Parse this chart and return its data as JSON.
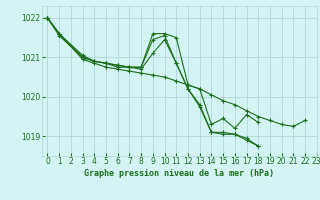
{
  "title": "Graphe pression niveau de la mer (hPa)",
  "background_color": "#d4f4f4",
  "grid_color": "#b0d8d8",
  "line_color": "#1a6e1a",
  "marker_color": "#1a6e1a",
  "xlim": [
    -0.5,
    23
  ],
  "ylim": [
    1018.5,
    1022.3
  ],
  "yticks": [
    1019,
    1020,
    1021,
    1022
  ],
  "xticks": [
    0,
    1,
    2,
    3,
    4,
    5,
    6,
    7,
    8,
    9,
    10,
    11,
    12,
    13,
    14,
    15,
    16,
    17,
    18,
    19,
    20,
    21,
    22,
    23
  ],
  "series": [
    [
      1022.0,
      1021.55,
      null,
      1021.0,
      1020.9,
      1020.85,
      1020.8,
      1020.75,
      1020.75,
      1021.45,
      1021.55,
      1020.85,
      1020.2,
      1019.75,
      1019.1,
      1019.1,
      1019.05,
      1018.9,
      1018.75,
      null,
      null,
      null,
      null,
      null
    ],
    [
      1022.0,
      1021.6,
      null,
      1021.0,
      1020.9,
      1020.85,
      1020.8,
      1020.75,
      1020.75,
      1021.6,
      1021.6,
      1021.5,
      1020.3,
      1020.2,
      1019.3,
      1019.45,
      1019.2,
      1019.55,
      1019.35,
      null,
      null,
      null,
      null,
      null
    ],
    [
      1022.0,
      1021.6,
      null,
      1021.05,
      1020.9,
      1020.85,
      1020.75,
      1020.75,
      1020.7,
      1021.1,
      1021.45,
      1020.85,
      1020.2,
      1019.8,
      1019.1,
      1019.05,
      1019.05,
      1018.95,
      1018.75,
      null,
      null,
      null,
      null,
      null
    ],
    [
      1022.0,
      1021.6,
      null,
      1020.95,
      1020.85,
      1020.75,
      1020.7,
      1020.65,
      1020.6,
      1020.55,
      1020.5,
      1020.4,
      1020.3,
      1020.2,
      1020.05,
      1019.9,
      1019.8,
      1019.65,
      1019.5,
      1019.4,
      1019.3,
      1019.25,
      1019.4,
      null
    ]
  ]
}
